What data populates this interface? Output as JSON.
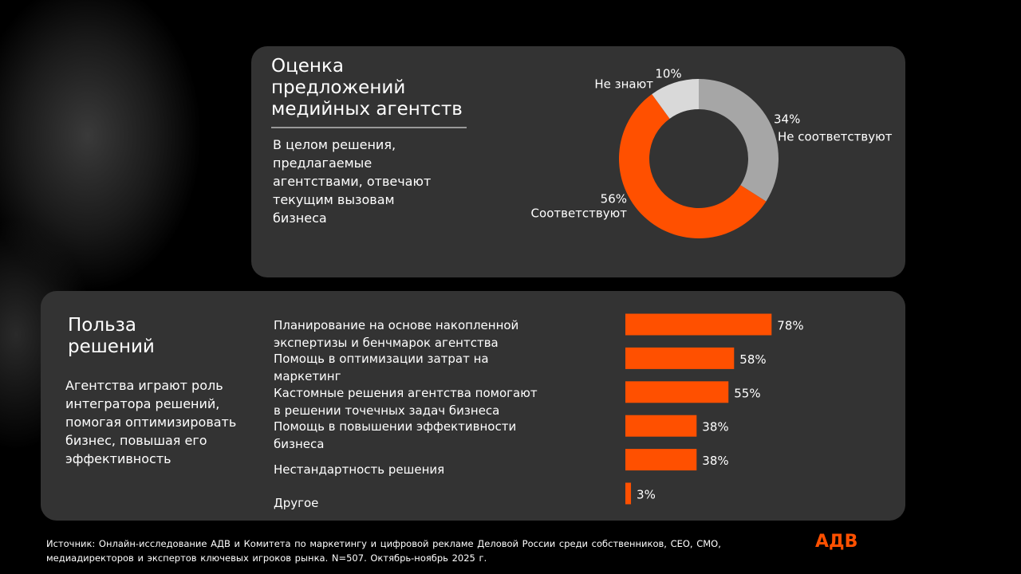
{
  "chart_data": [
    {
      "type": "donut",
      "title": "Оценка предложений медийных агентств",
      "subtitle": "В целом решения, предлагаемые агентствами, отвечают текущим вызовам бизнеса",
      "categories": [
        "Не соответствуют",
        "Соответствуют",
        "Не знают"
      ],
      "values": [
        34,
        56,
        10
      ],
      "value_labels": [
        "34%",
        "56%",
        "10%"
      ],
      "colors": [
        "#a6a6a6",
        "#ff5000",
        "#d9d9d9"
      ]
    },
    {
      "type": "hbar",
      "title": "Польза решений",
      "subtitle": "Агентства играют роль интегратора решений, помогая оптимизировать бизнес, повышая его эффективность",
      "categories": [
        "Планирование на основе накопленной экспертизы и бенчмарок агентства",
        "Помощь в оптимизации затрат на маркетинг",
        "Кастомные решения агентства помогают в решении точечных задач бизнеса",
        "Помощь в повышении эффективности бизнеса",
        "Нестандартность решения",
        "Другое"
      ],
      "values": [
        78,
        58,
        55,
        38,
        38,
        3
      ],
      "value_labels": [
        "78%",
        "58%",
        "55%",
        "38%",
        "38%",
        "3%"
      ],
      "color": "#ff5000"
    }
  ],
  "source": "Источник: Онлайн-исследование АДВ и Комитета по маркетингу и цифровой рекламе Деловой России среди собственников, CEO, CMO, медиадиректоров и экспертов ключевых игроков рынка. N=507. Октябрь-ноябрь 2025 г.",
  "logo": "АДВ"
}
